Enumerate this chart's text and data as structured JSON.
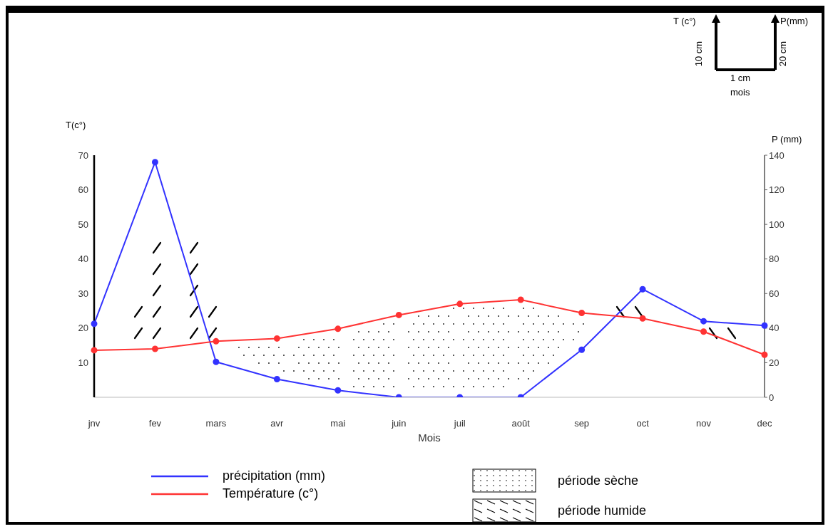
{
  "chart_data": {
    "type": "line",
    "xlabel": "Mois",
    "ylabel": "T(c°)",
    "y2label": "P (mm)",
    "categories": [
      "jnv",
      "fev",
      "mars",
      "avr",
      "mai",
      "juin",
      "juil",
      "août",
      "sep",
      "oct",
      "nov",
      "dec"
    ],
    "series": [
      {
        "name": "précipitation (mm)",
        "color": "#3333ff",
        "axis": "y2",
        "values": [
          42.5,
          136,
          20.5,
          10.5,
          4,
          0,
          0,
          0,
          27.5,
          62.5,
          44,
          41.5
        ]
      },
      {
        "name": "Température (c°)",
        "color": "#ff3333",
        "values": [
          13.6,
          14,
          16.2,
          17,
          19.8,
          23.8,
          27,
          28.2,
          24.4,
          22.8,
          19,
          12.3
        ]
      }
    ],
    "ylim": [
      0,
      70
    ],
    "yticks": [
      10,
      20,
      30,
      40,
      50,
      60,
      70
    ],
    "y2lim": [
      0,
      140
    ],
    "y2ticks": [
      0,
      20,
      40,
      60,
      80,
      100,
      120,
      140
    ],
    "grid": false,
    "legend": "bottom",
    "marker": "circle",
    "line_style": "solid",
    "annotations": [
      "période sèche",
      "période humide",
      "T (c°)",
      "P(mm)",
      "10 cm",
      "20 cm",
      "1 cm",
      "mois"
    ]
  }
}
